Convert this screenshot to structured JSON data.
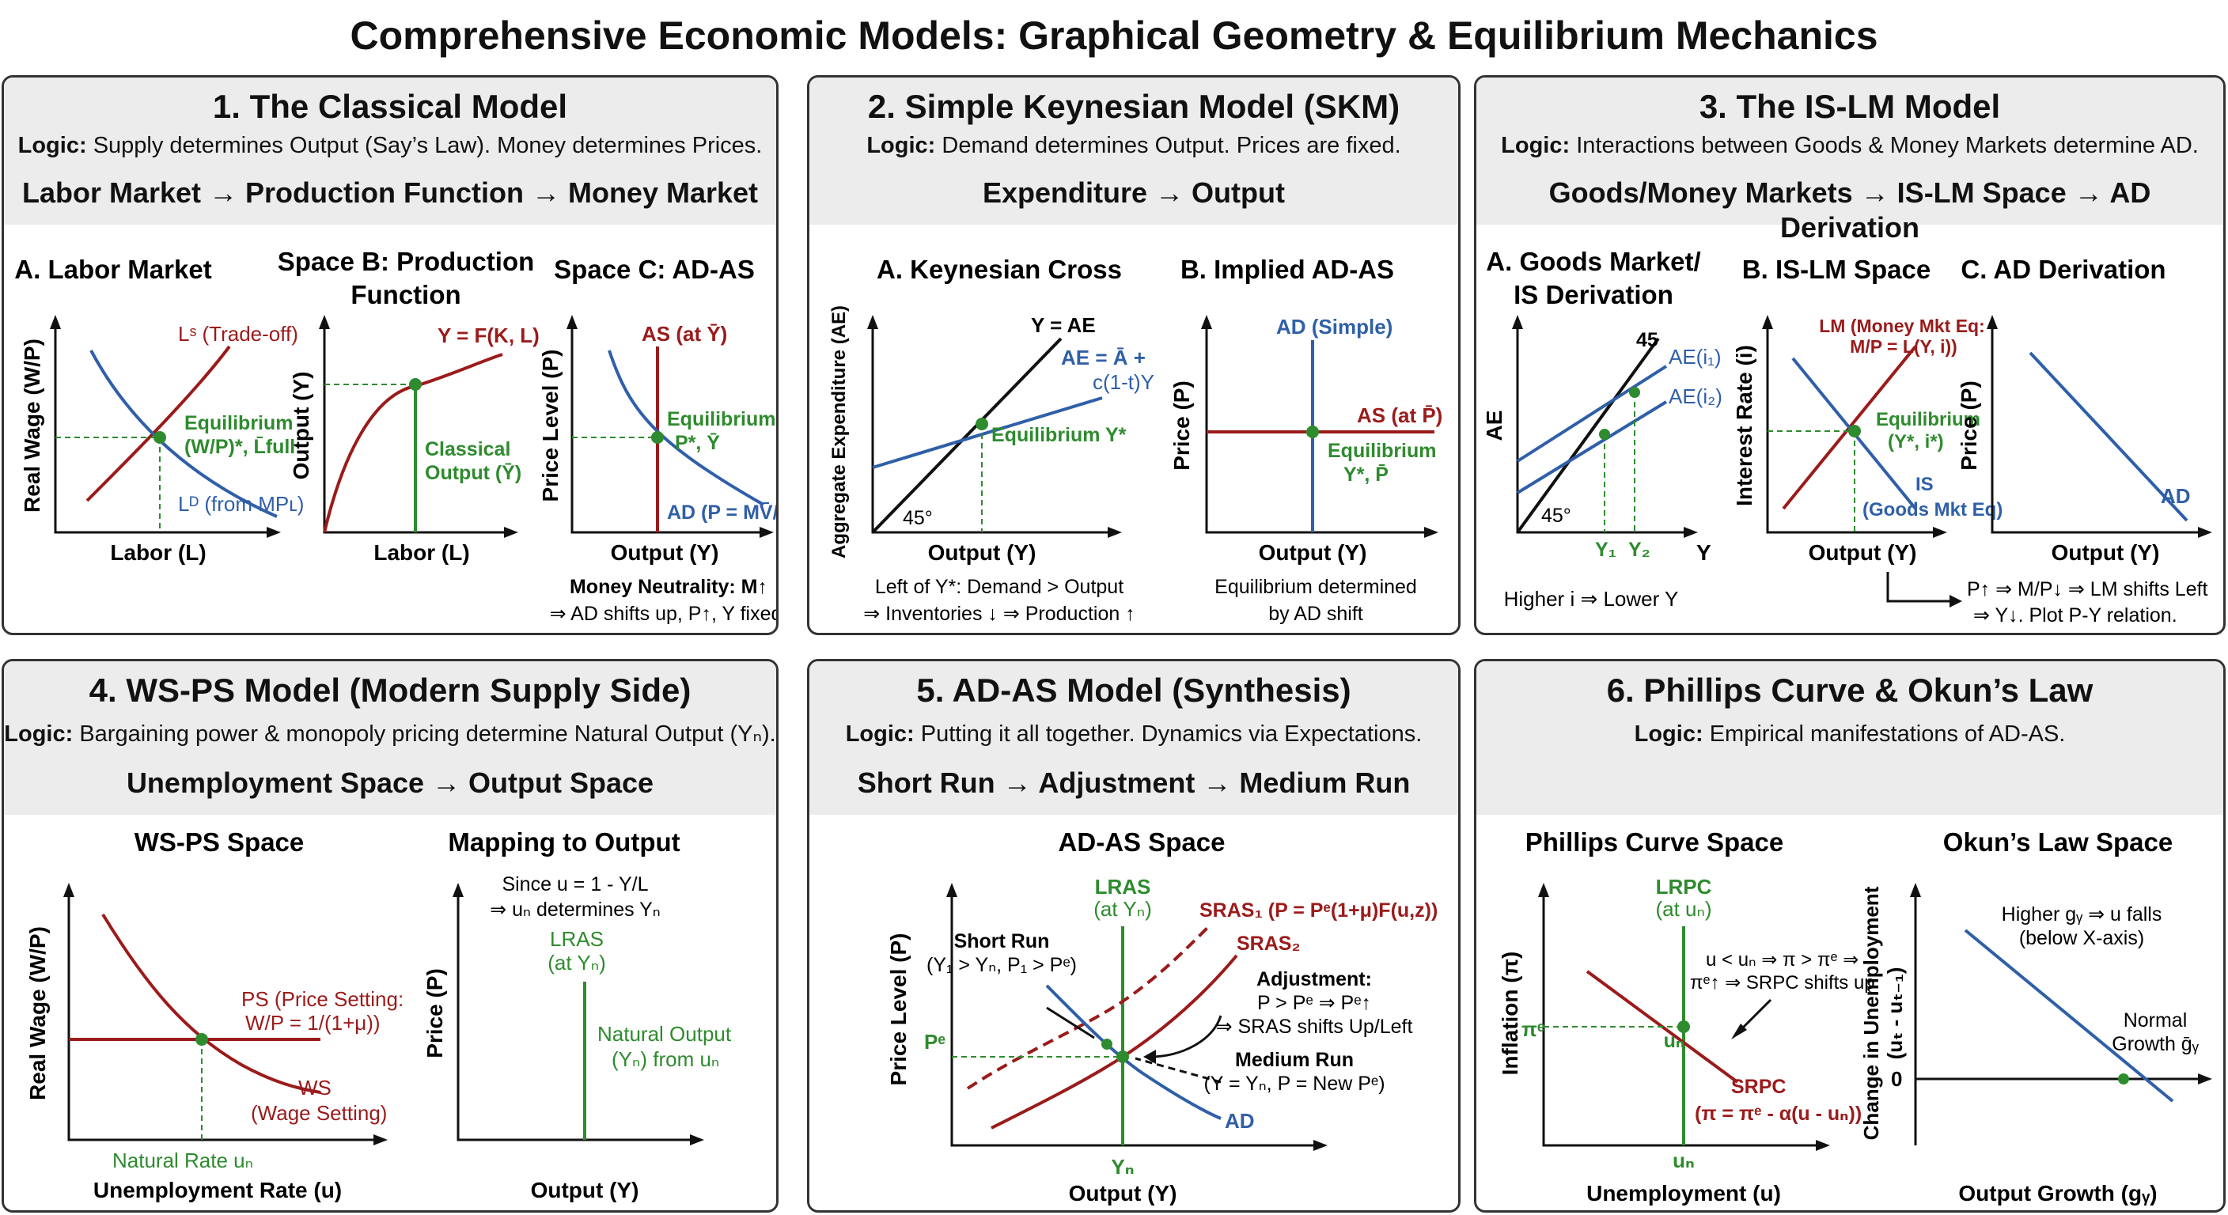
{
  "title": "Comprehensive Economic Models: Graphical Geometry & Equilibrium Mechanics",
  "colors": {
    "red": "#9b1b1b",
    "blue": "#2f5fa8",
    "green": "#2e8b2e",
    "black": "#111111",
    "header_bg": "#ececec"
  },
  "panels": [
    {
      "title": "1. The Classical Model",
      "logic_label": "Logic:",
      "logic": "Supply determines Output (Say’s Law). Money determines Prices.",
      "flow": "Labor Market → Production Function → Money Market",
      "sub_a": "A. Labor Market",
      "sub_b": "Space B: Production",
      "sub_b2": "Function",
      "sub_c": "Space C: AD-AS",
      "a_ylabel": "Real Wage (W/P)",
      "a_xlabel": "Labor (L)",
      "a_ls": "Lˢ (Trade-off)",
      "a_ld": "Lᴰ (from MPʟ)",
      "a_eq1": "Equilibrium",
      "a_eq2": "(W/P)*, L̄full",
      "b_ylabel": "Output (Y)",
      "b_xlabel": "Labor (L)",
      "b_curve": "Y = F(K, L)",
      "b_eq1": "Classical",
      "b_eq2": "Output (Ȳ)",
      "c_ylabel": "Price Level (P)",
      "c_xlabel": "Output (Y)",
      "c_as": "AS (at Ȳ)",
      "c_ad": "AD (P = MV̄/Y)",
      "c_eq1": "Equilibrium",
      "c_eq2": "P*, Ȳ",
      "note1": "Money Neutrality: M↑",
      "note2": "⇒ AD shifts up, P↑, Y fixed."
    },
    {
      "title": "2. Simple Keynesian Model (SKM)",
      "logic_label": "Logic:",
      "logic": "Demand determines Output. Prices are fixed.",
      "flow": "Expenditure → Output",
      "sub_a": "A. Keynesian Cross",
      "sub_b": "B. Implied AD-AS",
      "a_ylabel": "Aggregate Expenditure (AE)",
      "a_xlabel": "Output (Y)",
      "a_yae": "Y = AE",
      "a_ae1": "AE = Ā +",
      "a_ae2": "c(1-t)Y",
      "a_eq": "Equilibrium Y*",
      "a_deg": "45°",
      "a_note1": "Left of Y*: Demand > Output",
      "a_note2": "⇒ Inventories ↓ ⇒ Production ↑",
      "b_ylabel": "Price (P)",
      "b_xlabel": "Output (Y)",
      "b_ad": "AD (Simple)",
      "b_as": "AS (at P̄)",
      "b_eq1": "Equilibrium",
      "b_eq2": "Y*, P̄",
      "b_note1": "Equilibrium determined",
      "b_note2": "by AD shift"
    },
    {
      "title": "3. The IS-LM Model",
      "logic_label": "Logic:",
      "logic": "Interactions between Goods & Money Markets determine AD.",
      "flow": "Goods/Money Markets → IS-LM Space → AD Derivation",
      "sub_a": "A. Goods Market/",
      "sub_a2": "IS Derivation",
      "sub_b": "B. IS-LM Space",
      "sub_c": "C. AD Derivation",
      "a_ylabel": "AE",
      "a_xlabel": "Y",
      "a_45": "45",
      "a_ae1": "AE(i₁)",
      "a_ae2": "AE(i₂)",
      "a_deg": "45°",
      "a_y1": "Y₁",
      "a_y2": "Y₂",
      "a_note": "Higher i ⇒ Lower Y",
      "b_ylabel": "Interest Rate (i)",
      "b_xlabel": "Output (Y)",
      "b_lm1": "LM (Money Mkt Eq:",
      "b_lm2": "M/P = L(Y, i))",
      "b_eq1": "Equilibrium",
      "b_eq2": "(Y*, i*)",
      "b_is1": "IS",
      "b_is2": "(Goods Mkt Eq)",
      "c_ylabel": "Price (P)",
      "c_xlabel": "Output (Y)",
      "c_ad": "AD",
      "c_note1": "P↑ ⇒ M/P↓ ⇒ LM shifts Left",
      "c_note2": "⇒ Y↓. Plot P-Y relation."
    },
    {
      "title": "4. WS-PS Model (Modern Supply Side)",
      "logic_label": "Logic:",
      "logic": "Bargaining power & monopoly pricing determine Natural Output (Yₙ).",
      "flow": "Unemployment Space → Output Space",
      "sub_a": "WS-PS Space",
      "sub_b": "Mapping to Output",
      "a_ylabel": "Real Wage (W/P)",
      "a_xlabel": "Unemployment Rate (u)",
      "a_ps1": "PS (Price Setting:",
      "a_ps2": "W/P = 1/(1+μ))",
      "a_ws1": "WS",
      "a_ws2": "(Wage Setting)",
      "a_nat": "Natural Rate uₙ",
      "b_ylabel": "Price (P)",
      "b_xlabel": "Output (Y)",
      "b_since1": "Since u = 1 - Y/L",
      "b_since2": "⇒ uₙ determines Yₙ",
      "b_lras1": "LRAS",
      "b_lras2": "(at Yₙ)",
      "b_nat1": "Natural Output",
      "b_nat2": "(Yₙ) from uₙ"
    },
    {
      "title": "5. AD-AS Model (Synthesis)",
      "logic_label": "Logic:",
      "logic": "Putting it all together. Dynamics via Expectations.",
      "flow": "Short Run → Adjustment → Medium Run",
      "sub_a": "AD-AS Space",
      "ylabel": "Price Level (P)",
      "xlabel": "Output (Y)",
      "lras1": "LRAS",
      "lras2": "(at Yₙ)",
      "sras1": "SRAS₁ (P = Pᵉ(1+μ)F(u,z))",
      "sras2": "SRAS₂",
      "sr1": "Short Run",
      "sr2": "(Y₁ > Yₙ, P₁ > Pᵉ)",
      "adj1": "Adjustment:",
      "adj2": "P > Pᵉ ⇒ Pᵉ↑",
      "adj3": "⇒ SRAS shifts Up/Left",
      "mr1": "Medium Run",
      "mr2": "(Y = Yₙ, P = New Pᵉ)",
      "pe": "Pᵉ",
      "yn": "Yₙ",
      "ad": "AD"
    },
    {
      "title": "6. Phillips Curve & Okun’s Law",
      "logic_label": "Logic:",
      "logic": "Empirical manifestations of AD-AS.",
      "flow": "",
      "sub_a": "Phillips Curve Space",
      "sub_b": "Okun’s Law Space",
      "a_ylabel": "Inflation (π)",
      "a_xlabel": "Unemployment (u)",
      "a_lrpc1": "LRPC",
      "a_lrpc2": "(at uₙ)",
      "a_note1": "u < uₙ ⇒ π > πᵉ ⇒",
      "a_note2": "πᵉ↑ ⇒ SRPC shifts up",
      "a_pie": "πᵉ",
      "a_un": "uₙ",
      "a_un_axis": "uₙ",
      "a_srpc1": "SRPC",
      "a_srpc2": "(π = πᵉ - α(u - uₙ))",
      "b_ylabel1": "Change in Unemployment",
      "b_ylabel2": "(uₜ - uₜ₋₁)",
      "b_xlabel": "Output Growth (gᵧ)",
      "b_note1": "Higher gᵧ ⇒ u falls",
      "b_note2": "(below X-axis)",
      "b_norm1": "Normal",
      "b_norm2": "Growth ḡᵧ",
      "b_zero": "0"
    }
  ]
}
